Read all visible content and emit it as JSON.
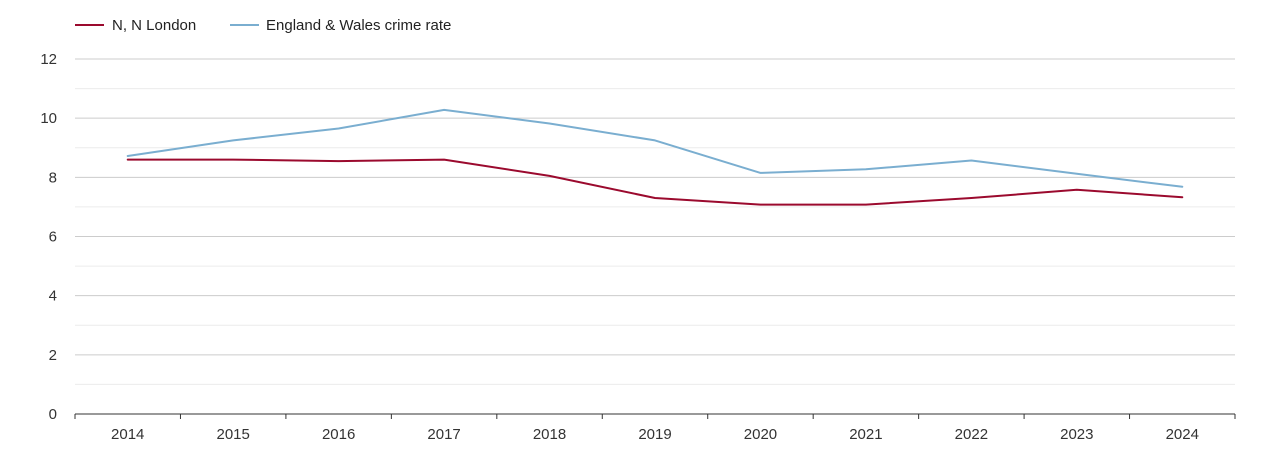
{
  "chart_data": {
    "type": "line",
    "title": "",
    "xlabel": "",
    "ylabel": "",
    "x": [
      "2014",
      "2015",
      "2016",
      "2017",
      "2018",
      "2019",
      "2020",
      "2021",
      "2022",
      "2023",
      "2024"
    ],
    "ylim": [
      0,
      12
    ],
    "yticks": [
      "0",
      "2",
      "4",
      "6",
      "8",
      "10",
      "12"
    ],
    "grid": true,
    "legend_position": "top-left",
    "series": [
      {
        "name": "N, N London",
        "color": "#9b0a2e",
        "values": [
          8.6,
          8.6,
          8.55,
          8.6,
          8.05,
          7.3,
          7.08,
          7.08,
          7.3,
          7.58,
          7.33
        ]
      },
      {
        "name": "England & Wales crime rate",
        "color": "#7aaed0",
        "values": [
          8.72,
          9.25,
          9.65,
          10.28,
          9.82,
          9.25,
          8.15,
          8.27,
          8.57,
          8.12,
          7.68
        ]
      }
    ]
  }
}
